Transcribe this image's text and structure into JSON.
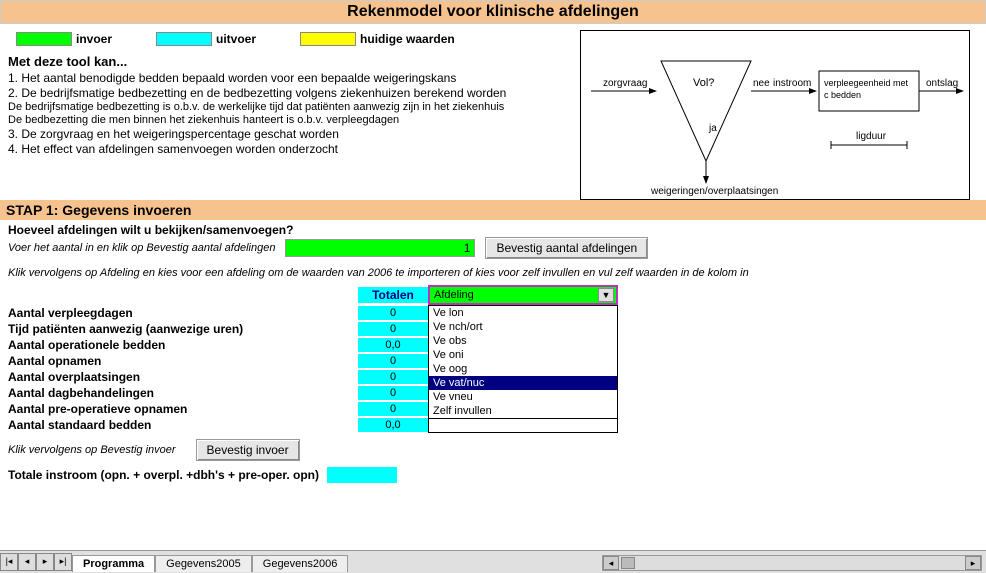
{
  "title": "Rekenmodel voor klinische afdelingen",
  "legend": {
    "invoer": {
      "color": "#00ff00",
      "label": "invoer"
    },
    "uitvoer": {
      "color": "#00ffff",
      "label": "uitvoer"
    },
    "huidige": {
      "color": "#ffff00",
      "label": "huidige waarden"
    }
  },
  "tool": {
    "heading": "Met deze tool kan...",
    "items": [
      "1.  Het aantal benodigde bedden bepaald worden voor een bepaalde weigeringskans",
      "2.  De bedrijfsmatige bedbezetting en de bedbezetting volgens ziekenhuizen berekend worden",
      "3. De zorgvraag en het weigeringspercentage geschat worden",
      "4. Het effect van afdelingen samenvoegen worden onderzocht"
    ],
    "subitems": [
      "De bedrijfsmatige bedbezetting is o.b.v. de werkelijke tijd dat patiënten aanwezig zijn in het ziekenhuis",
      "De bedbezetting die men binnen het ziekenhuis hanteert is o.b.v. verpleegdagen"
    ]
  },
  "diagram": {
    "zorgvraag": "zorgvraag",
    "vol": "Vol?",
    "ja": "ja",
    "nee": "nee",
    "instroom": "instroom",
    "box": "verpleegeenheid met c bedden",
    "ontslag": "ontslag",
    "weig": "weigeringen/overplaatsingen",
    "ligduur": "ligduur",
    "line_color": "#000000",
    "bg": "#ffffff"
  },
  "step1": {
    "bar": "STAP 1: Gegevens invoeren",
    "question": "Hoeveel afdelingen wilt u bekijken/samenvoegen?",
    "hint": "Voer het aantal in en klik op Bevestig aantal afdelingen",
    "value": "1",
    "confirm_btn": "Bevestig aantal afdelingen",
    "instruction": "Klik vervolgens op Afdeling en kies voor een afdeling om de waarden van 2006 te importeren of kies voor zelf invullen en vul zelf waarden in de kolom in"
  },
  "grid": {
    "tot_head": "Totalen",
    "dd_selected": "Afdeling",
    "dd_options": [
      "Ve lon",
      "Ve nch/ort",
      "Ve obs",
      "Ve oni",
      "Ve oog",
      "Ve vat/nuc",
      "Ve vneu",
      "Zelf invullen"
    ],
    "dd_highlight_index": 5,
    "rows": [
      {
        "label": "Aantal verpleegdagen",
        "total": "0"
      },
      {
        "label": "Tijd patiënten aanwezig (aanwezige uren)",
        "total": "0"
      },
      {
        "label": "Aantal operationele bedden",
        "total": "0,0"
      },
      {
        "label": "Aantal opnamen",
        "total": "0"
      },
      {
        "label": "Aantal overplaatsingen",
        "total": "0"
      },
      {
        "label": "Aantal dagbehandelingen",
        "total": "0"
      },
      {
        "label": "Aantal pre-operatieve opnamen",
        "total": "0"
      },
      {
        "label": "Aantal standaard bedden",
        "total": "0,0"
      }
    ]
  },
  "confirm_input": {
    "hint": "Klik vervolgens op Bevestig invoer",
    "btn": "Bevestig invoer"
  },
  "totale_instroom": "Totale instroom (opn. + overpl. +dbh's + pre-oper. opn)",
  "tabs": {
    "items": [
      "Programma",
      "Gegevens2005",
      "Gegevens2006"
    ],
    "active_index": 0
  },
  "colors": {
    "peach": "#f6c38f",
    "green": "#00ff00",
    "cyan": "#00ffff",
    "yellow": "#ffff00",
    "navy": "#000080",
    "dd_border": "#c030c0"
  }
}
